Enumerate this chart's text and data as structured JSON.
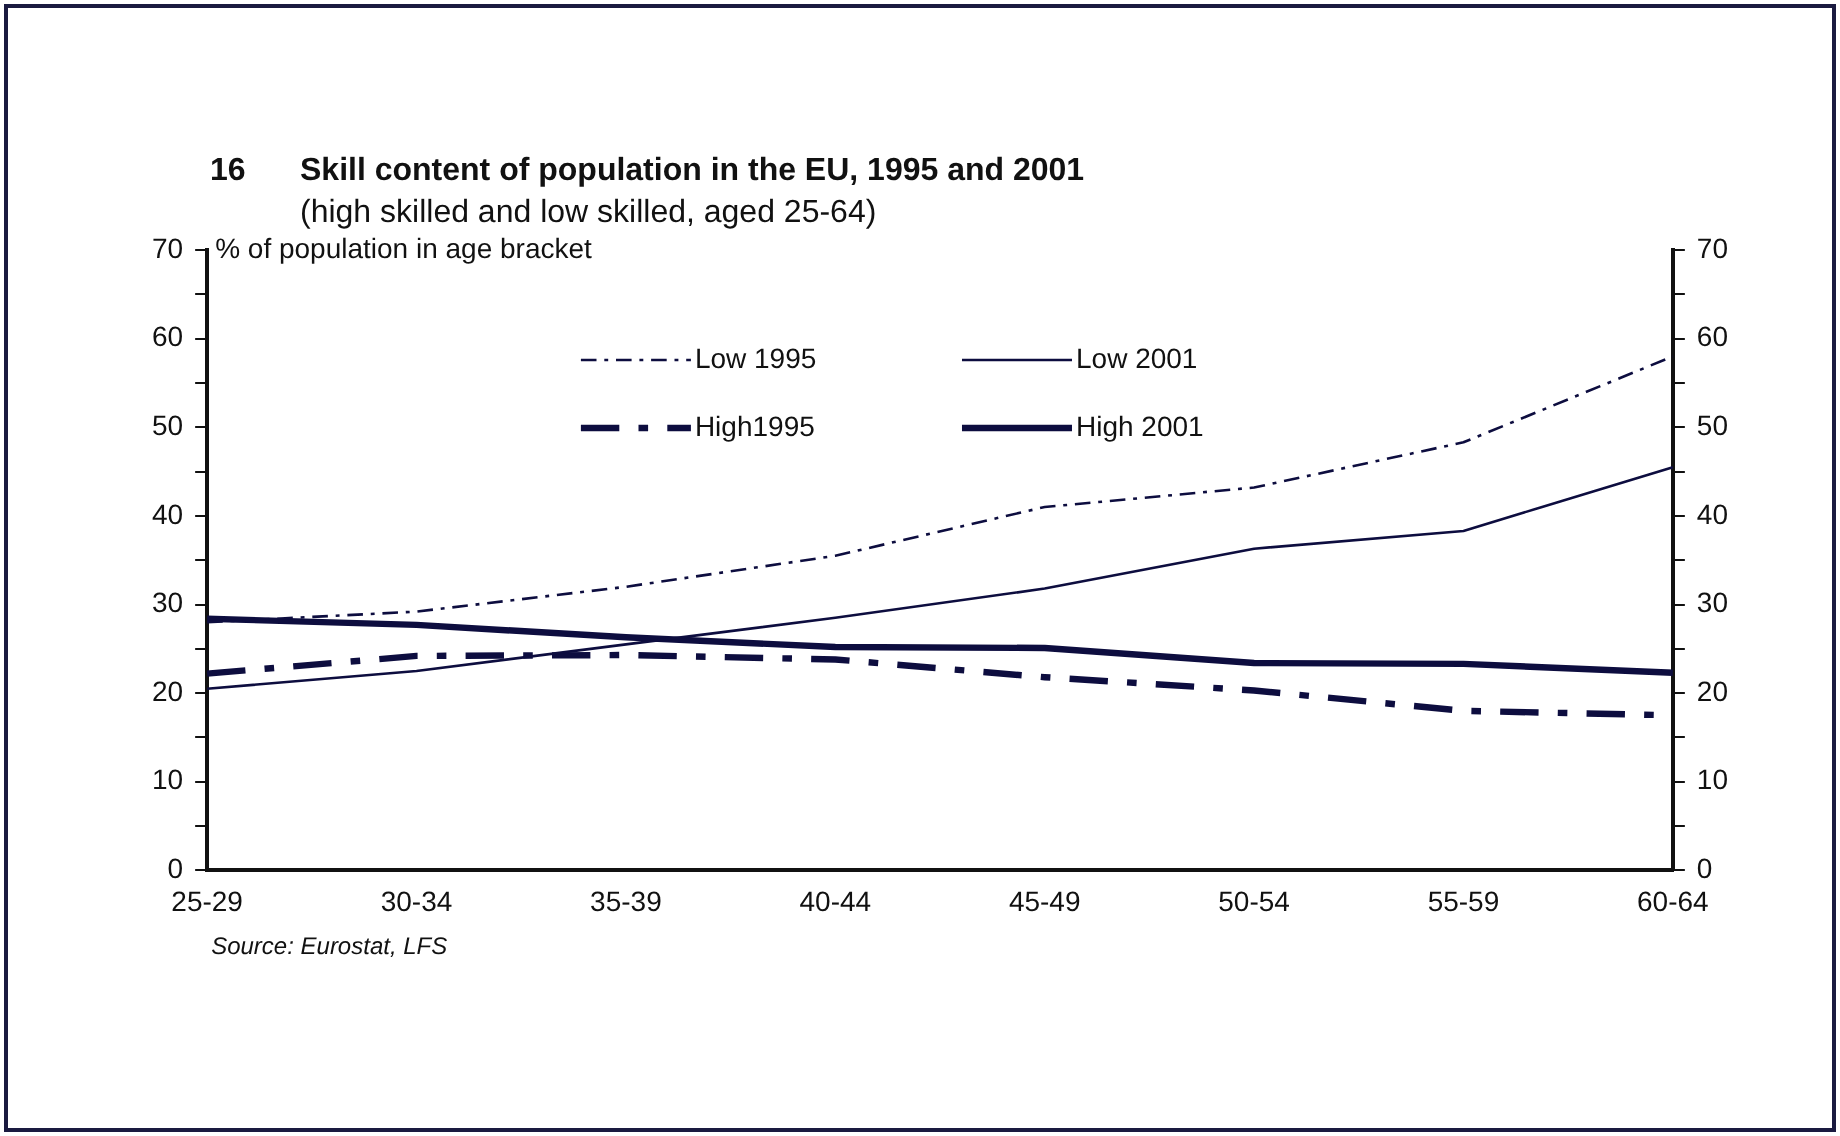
{
  "chart_data": {
    "type": "line",
    "title": "16 Skill content of population in the EU, 1995 and 2001",
    "subtitle": "(high skilled and low skilled, aged 25-64)",
    "ylabel": "% of population in age bracket",
    "categories": [
      "25-29",
      "30-34",
      "35-39",
      "40-44",
      "45-49",
      "50-54",
      "55-59",
      "60-64"
    ],
    "series": [
      {
        "name": "Low 1995",
        "color": "#0d0d3f",
        "line_style": "dashed",
        "values": [
          28,
          29.2,
          32,
          35.5,
          41,
          43.2,
          48.3,
          58
        ]
      },
      {
        "name": "Low 2001",
        "color": "#0d0d3f",
        "line_style": "solid",
        "values": [
          20.5,
          22.5,
          25.5,
          28.5,
          31.8,
          36.3,
          38.3,
          45.5
        ]
      },
      {
        "name": "High1995",
        "color": "#0d0d3f",
        "line_style": "dashed",
        "values": [
          22.2,
          24.2,
          24.3,
          23.8,
          21.8,
          20.3,
          18,
          17.5
        ]
      },
      {
        "name": "High 2001",
        "color": "#0d0d3f",
        "line_style": "solid",
        "values": [
          28.4,
          27.7,
          26.3,
          25.2,
          25.1,
          23.4,
          23.3,
          22.3
        ]
      }
    ],
    "ylim": [
      0,
      70
    ],
    "yticks": [
      0,
      {
        "value": 5,
        "label": null
      },
      10,
      {
        "value": 15,
        "label": null
      },
      20,
      {
        "value": 25,
        "label": null
      },
      30,
      {
        "value": 35,
        "label": null
      },
      40,
      {
        "value": 45,
        "label": null
      },
      50,
      {
        "value": 55,
        "label": null
      },
      60,
      {
        "value": 65,
        "label": null
      },
      70
    ],
    "y2lim": [
      0,
      70
    ],
    "y2ticks": [
      0,
      {
        "value": 5,
        "label": null
      },
      10,
      {
        "value": 15,
        "label": null
      },
      20,
      {
        "value": 25,
        "label": null
      },
      30,
      {
        "value": 35,
        "label": null
      },
      40,
      {
        "value": 45,
        "label": null
      },
      50,
      {
        "value": 55,
        "label": null
      },
      60,
      {
        "value": 65,
        "label": null
      },
      70
    ],
    "grid": false,
    "legend": "top",
    "marker": "none",
    "annotations": [
      "Source: Eurostat, LFS"
    ]
  }
}
